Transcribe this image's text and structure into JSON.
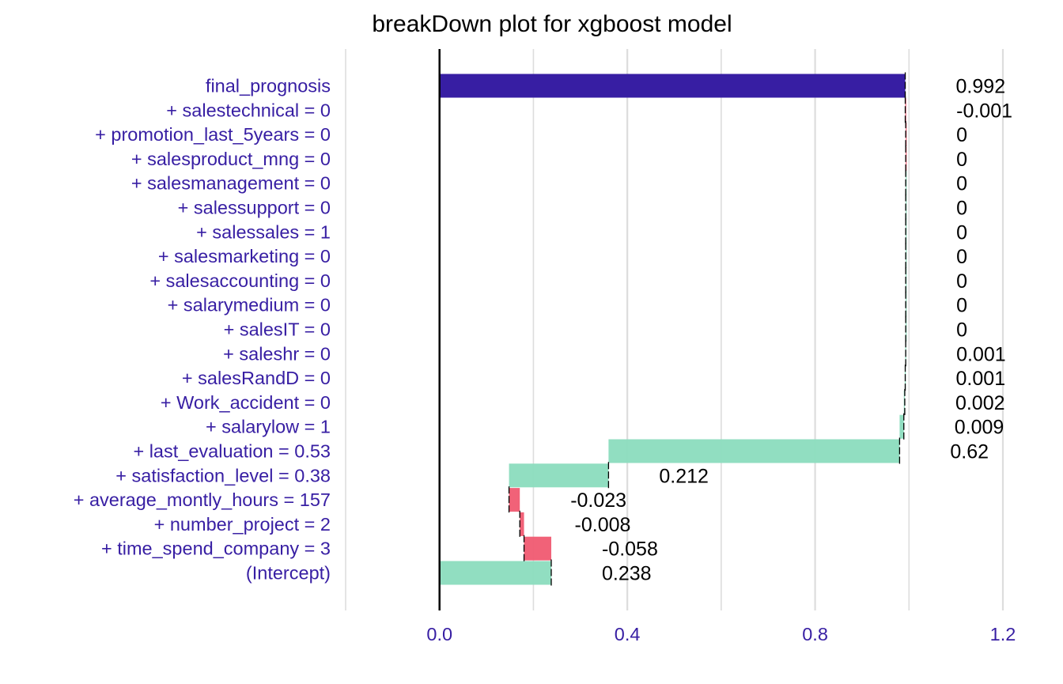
{
  "chart_data": {
    "type": "bar",
    "title": "breakDown plot for xgboost model",
    "xlabel": "",
    "ylabel": "",
    "xlim": [
      -0.2,
      1.2
    ],
    "x_ticks": [
      0.0,
      0.4,
      0.8,
      1.2
    ],
    "x_tick_labels": [
      "0.0",
      "0.4",
      "0.8",
      "1.2"
    ],
    "grid": true,
    "colors": {
      "final": "#371ea3",
      "positive": "#8bdcbe",
      "negative": "#f05a71",
      "label": "#371ea3",
      "gridline": "#dddddd"
    },
    "rows": [
      {
        "label": "final_prognosis",
        "label_text": "0.992",
        "start": 0,
        "end": 0.992,
        "kind": "final"
      },
      {
        "label": "+ salestechnical = 0",
        "label_text": "-0.001",
        "start": 0.993,
        "end": 0.992,
        "kind": "negative"
      },
      {
        "label": "+ promotion_last_5years = 0",
        "label_text": "0",
        "start": 0.993,
        "end": 0.993,
        "kind": "negative"
      },
      {
        "label": "+ salesproduct_mng = 0",
        "label_text": "0",
        "start": 0.993,
        "end": 0.993,
        "kind": "negative"
      },
      {
        "label": "+ salesmanagement = 0",
        "label_text": "0",
        "start": 0.993,
        "end": 0.993,
        "kind": "positive"
      },
      {
        "label": "+ salessupport = 0",
        "label_text": "0",
        "start": 0.993,
        "end": 0.993,
        "kind": "positive"
      },
      {
        "label": "+ salessales = 1",
        "label_text": "0",
        "start": 0.993,
        "end": 0.993,
        "kind": "positive"
      },
      {
        "label": "+ salesmarketing = 0",
        "label_text": "0",
        "start": 0.993,
        "end": 0.993,
        "kind": "positive"
      },
      {
        "label": "+ salesaccounting = 0",
        "label_text": "0",
        "start": 0.993,
        "end": 0.993,
        "kind": "positive"
      },
      {
        "label": "+ salarymedium = 0",
        "label_text": "0",
        "start": 0.993,
        "end": 0.993,
        "kind": "positive"
      },
      {
        "label": "+ salesIT = 0",
        "label_text": "0",
        "start": 0.993,
        "end": 0.993,
        "kind": "positive"
      },
      {
        "label": "+ saleshr = 0",
        "label_text": "0.001",
        "start": 0.992,
        "end": 0.993,
        "kind": "positive"
      },
      {
        "label": "+ salesRandD = 0",
        "label_text": "0.001",
        "start": 0.991,
        "end": 0.992,
        "kind": "positive"
      },
      {
        "label": "+ Work_accident = 0",
        "label_text": "0.002",
        "start": 0.989,
        "end": 0.991,
        "kind": "positive"
      },
      {
        "label": "+ salarylow = 1",
        "label_text": "0.009",
        "start": 0.98,
        "end": 0.989,
        "kind": "positive"
      },
      {
        "label": "+ last_evaluation = 0.53",
        "label_text": "0.62",
        "start": 0.36,
        "end": 0.98,
        "kind": "positive"
      },
      {
        "label": "+ satisfaction_level = 0.38",
        "label_text": "0.212",
        "start": 0.148,
        "end": 0.36,
        "kind": "positive"
      },
      {
        "label": "+ average_montly_hours = 157",
        "label_text": "-0.023",
        "start": 0.171,
        "end": 0.148,
        "kind": "negative"
      },
      {
        "label": "+ number_project = 2",
        "label_text": "-0.008",
        "start": 0.18,
        "end": 0.171,
        "kind": "negative"
      },
      {
        "label": "+ time_spend_company = 3",
        "label_text": "-0.058",
        "start": 0.238,
        "end": 0.18,
        "kind": "negative"
      },
      {
        "label": "(Intercept)",
        "label_text": "0.238",
        "start": 0,
        "end": 0.238,
        "kind": "positive"
      }
    ]
  }
}
